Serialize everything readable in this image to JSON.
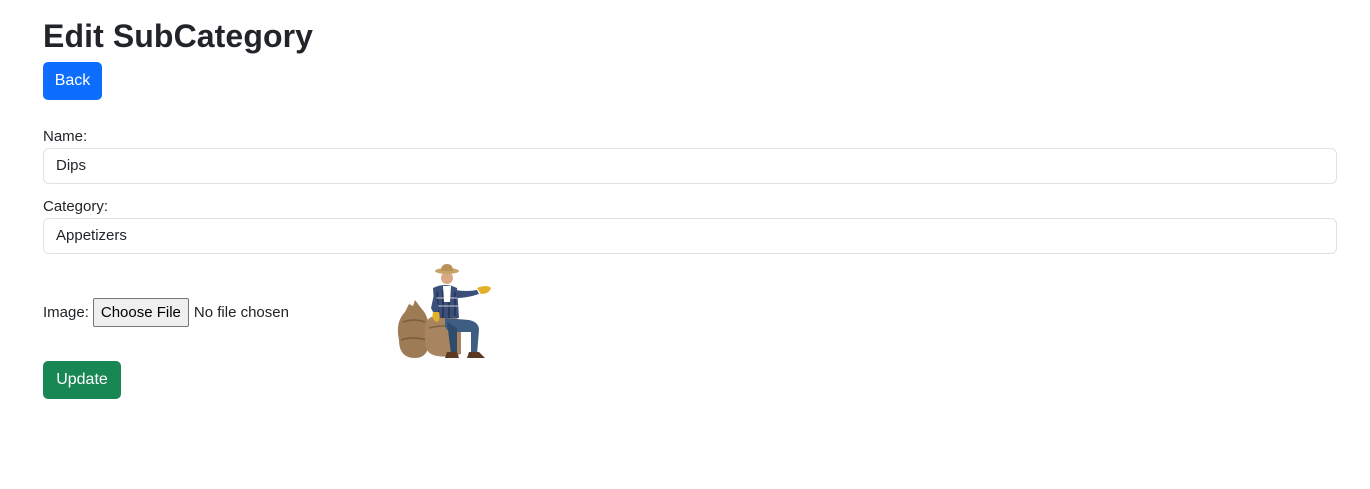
{
  "page": {
    "title": "Edit SubCategory"
  },
  "buttons": {
    "back_label": "Back",
    "update_label": "Update"
  },
  "form": {
    "name_label": "Name:",
    "name_value": "Dips",
    "category_label": "Category:",
    "category_value": "Appetizers",
    "image_label": "Image:",
    "choose_file_label": "Choose File",
    "no_file_text": "No file chosen"
  },
  "colors": {
    "primary": "#0d6efd",
    "success": "#198754",
    "border": "#dee2e6"
  }
}
